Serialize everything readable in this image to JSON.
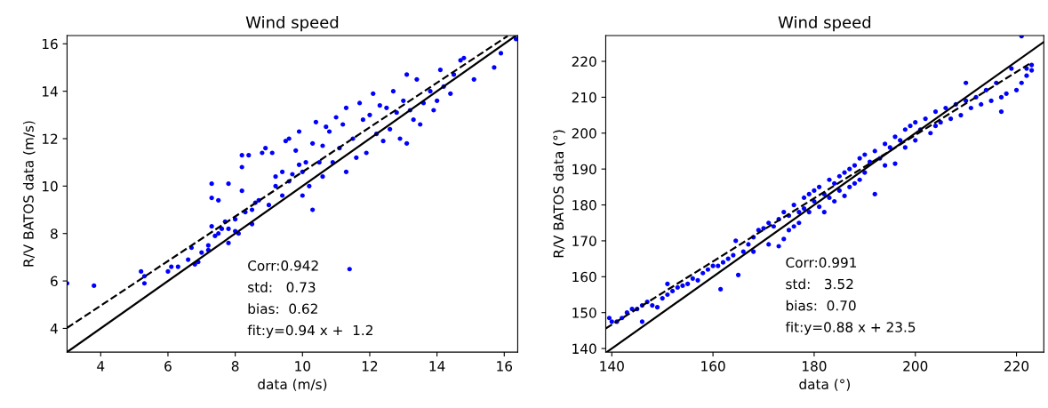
{
  "chart_data": [
    {
      "type": "scatter",
      "title": "Wind speed",
      "xlabel": "data (m/s)",
      "ylabel": "R/V BATOS data (m/s)",
      "xlim": [
        3,
        16.4
      ],
      "ylim": [
        3,
        16.35
      ],
      "xticks": [
        4,
        6,
        8,
        10,
        12,
        14,
        16
      ],
      "yticks": [
        4,
        6,
        8,
        10,
        12,
        14,
        16
      ],
      "grid": false,
      "annotations": [
        "Corr:0.942",
        "std:   0.73",
        "bias:  0.62",
        "fit:y=0.94 x +  1.2"
      ],
      "series": [
        {
          "marker": "circle",
          "color": "#0000ff",
          "x": [
            3.0,
            3.8,
            5.2,
            5.3,
            5.3,
            6.0,
            6.1,
            6.3,
            6.6,
            6.8,
            6.7,
            7.0,
            6.9,
            7.2,
            7.2,
            7.3,
            7.3,
            7.3,
            7.5,
            7.4,
            7.5,
            7.6,
            7.7,
            7.8,
            7.8,
            7.8,
            8.0,
            8.0,
            8.1,
            8.2,
            8.2,
            8.2,
            8.4,
            8.3,
            8.5,
            8.6,
            8.5,
            8.7,
            8.8,
            8.9,
            9.0,
            9.1,
            9.2,
            9.2,
            9.4,
            9.4,
            9.5,
            9.6,
            9.6,
            9.7,
            9.8,
            9.9,
            9.9,
            10.0,
            10.0,
            10.1,
            10.2,
            10.3,
            10.3,
            10.4,
            10.5,
            10.6,
            10.6,
            10.7,
            10.8,
            10.9,
            11.0,
            11.1,
            11.2,
            11.3,
            11.3,
            11.4,
            11.5,
            11.6,
            11.7,
            11.8,
            11.9,
            12.0,
            12.1,
            12.2,
            12.3,
            12.4,
            12.5,
            12.6,
            12.7,
            12.8,
            12.9,
            13.0,
            13.1,
            13.1,
            13.2,
            13.3,
            13.4,
            13.5,
            13.6,
            13.8,
            13.9,
            14.0,
            14.1,
            14.2,
            14.4,
            14.5,
            14.7,
            14.8,
            15.1,
            15.7,
            15.9,
            16.35
          ],
          "values": [
            5.9,
            5.8,
            6.4,
            6.2,
            5.9,
            6.4,
            6.6,
            6.6,
            6.9,
            6.7,
            7.4,
            7.2,
            6.8,
            7.5,
            7.3,
            8.3,
            10.1,
            9.5,
            9.4,
            7.9,
            8.0,
            8.2,
            8.5,
            7.6,
            8.2,
            10.1,
            8.1,
            8.6,
            8.0,
            9.8,
            10.8,
            11.3,
            11.3,
            8.9,
            9.0,
            9.3,
            8.4,
            9.4,
            11.4,
            11.6,
            9.2,
            11.4,
            10.0,
            10.4,
            10.6,
            9.6,
            11.9,
            12.0,
            10.2,
            10.5,
            11.5,
            12.3,
            10.9,
            10.6,
            9.6,
            11.0,
            10.0,
            9.0,
            11.8,
            12.7,
            11.0,
            11.7,
            10.4,
            12.5,
            12.3,
            11.0,
            12.9,
            11.6,
            12.6,
            10.6,
            13.3,
            6.5,
            12.0,
            11.2,
            13.5,
            12.8,
            11.4,
            13.0,
            13.9,
            12.2,
            13.4,
            11.9,
            13.3,
            12.4,
            14.0,
            13.1,
            12.0,
            13.6,
            11.8,
            14.7,
            13.2,
            12.8,
            14.5,
            12.6,
            13.5,
            14.0,
            13.2,
            13.6,
            14.9,
            14.2,
            13.9,
            14.7,
            15.3,
            15.4,
            14.5,
            15.0,
            15.6,
            16.2
          ]
        },
        {
          "type": "line",
          "color": "#000000",
          "line_style": "dashed",
          "x": [
            3,
            16.1
          ],
          "values": [
            4.02,
            16.33
          ]
        },
        {
          "type": "line",
          "color": "#000000",
          "line_style": "solid",
          "x": [
            3,
            16.35
          ],
          "values": [
            3,
            16.35
          ]
        }
      ]
    },
    {
      "type": "scatter",
      "title": "Wind speed",
      "xlabel": "data (°)",
      "ylabel": "R/V BATOS data (°)",
      "xlim": [
        138.8,
        225.4
      ],
      "ylim": [
        139,
        227.2
      ],
      "xticks": [
        140,
        160,
        180,
        200,
        220
      ],
      "yticks": [
        140,
        150,
        160,
        170,
        180,
        190,
        200,
        210,
        220
      ],
      "grid": false,
      "annotations": [
        "Corr:0.991",
        "std:   3.52",
        "bias:  0.70",
        "fit:y=0.88 x + 23.5"
      ],
      "series": [
        {
          "marker": "circle",
          "color": "#0000ff",
          "x": [
            139.5,
            140,
            141,
            142,
            143,
            144,
            145,
            146,
            146,
            147,
            148,
            149,
            150,
            151,
            151,
            152,
            153,
            154,
            155,
            156,
            157,
            158,
            159,
            160,
            161,
            161.5,
            162,
            163,
            164,
            164.5,
            165,
            166,
            167,
            168,
            168,
            169,
            170,
            171,
            171,
            172,
            173,
            173,
            174,
            174,
            175,
            175,
            176,
            176,
            177,
            177,
            178,
            178,
            179,
            179,
            180,
            180,
            181,
            181,
            182,
            182,
            183,
            183,
            184,
            184,
            185,
            185,
            186,
            186,
            187,
            187,
            188,
            188,
            189,
            189,
            190,
            190,
            191,
            192,
            192,
            193,
            194,
            194,
            195,
            196,
            196,
            197,
            198,
            198,
            199,
            200,
            200,
            201,
            202,
            203,
            204,
            204,
            205,
            206,
            207,
            208,
            209,
            210,
            210,
            211,
            212,
            213,
            214,
            215,
            216,
            217,
            217,
            218,
            219,
            220,
            221,
            221,
            222,
            222,
            223,
            223
          ],
          "values": [
            148.5,
            147.5,
            147.5,
            148.5,
            150,
            151,
            151,
            147.5,
            152,
            153,
            152,
            151.5,
            154,
            158,
            155,
            156,
            157,
            157.5,
            158,
            159.5,
            159,
            161,
            162,
            163,
            163,
            156.5,
            164,
            165,
            166,
            170,
            160.5,
            167,
            169,
            167,
            171,
            173,
            173.5,
            175,
            169,
            174,
            176,
            168.5,
            170.5,
            178,
            177,
            173,
            180,
            174,
            178,
            175,
            182,
            179,
            183,
            178,
            184,
            181,
            185,
            179.5,
            183,
            178,
            187,
            182,
            186,
            181,
            188,
            184,
            189,
            182.5,
            190,
            185,
            191,
            186,
            193,
            187,
            194,
            189,
            192,
            183,
            195,
            193,
            197,
            191,
            196,
            199,
            191.5,
            198,
            201,
            196,
            202,
            198,
            203,
            201,
            204,
            200,
            206,
            202,
            203,
            207,
            204,
            208,
            205,
            209,
            214,
            207,
            210,
            208,
            212,
            209,
            214,
            210,
            206,
            211,
            218,
            212,
            214,
            227,
            218,
            216,
            219,
            217.5
          ]
        },
        {
          "type": "line",
          "color": "#000000",
          "line_style": "dashed",
          "x": [
            138.8,
            223
          ],
          "values": [
            145.6,
            219.7
          ]
        },
        {
          "type": "line",
          "color": "#000000",
          "line_style": "solid",
          "x": [
            139,
            225.4
          ],
          "values": [
            139,
            225.4
          ]
        }
      ]
    }
  ]
}
